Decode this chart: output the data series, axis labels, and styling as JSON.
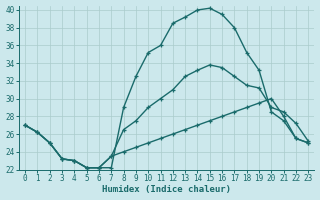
{
  "xlabel": "Humidex (Indice chaleur)",
  "bg_color": "#cce8ec",
  "grid_color": "#aacccc",
  "line_color": "#1a6b6b",
  "xlim": [
    -0.5,
    23.5
  ],
  "ylim": [
    22,
    40.5
  ],
  "xticks": [
    0,
    1,
    2,
    3,
    4,
    5,
    6,
    7,
    8,
    9,
    10,
    11,
    12,
    13,
    14,
    15,
    16,
    17,
    18,
    19,
    20,
    21,
    22,
    23
  ],
  "yticks": [
    22,
    24,
    26,
    28,
    30,
    32,
    34,
    36,
    38,
    40
  ],
  "series1_x": [
    0,
    1,
    2,
    3,
    4,
    5,
    6,
    7,
    8,
    9,
    10,
    11,
    12,
    13,
    14,
    15,
    16,
    17,
    18,
    19,
    20,
    21,
    22,
    23
  ],
  "series1_y": [
    27.0,
    26.2,
    25.0,
    23.2,
    23.0,
    22.2,
    22.2,
    22.2,
    29.0,
    32.5,
    35.2,
    36.0,
    38.5,
    39.2,
    40.0,
    40.2,
    39.5,
    38.0,
    35.2,
    33.2,
    28.5,
    27.5,
    25.5,
    25.0
  ],
  "series2_x": [
    0,
    1,
    2,
    3,
    4,
    5,
    6,
    7,
    8,
    9,
    10,
    11,
    12,
    13,
    14,
    15,
    16,
    17,
    18,
    19,
    20,
    21,
    22,
    23
  ],
  "series2_y": [
    27.0,
    26.2,
    25.0,
    23.2,
    23.0,
    22.2,
    22.2,
    23.5,
    26.5,
    27.5,
    29.0,
    30.0,
    31.0,
    32.5,
    33.2,
    33.8,
    33.5,
    32.5,
    31.5,
    31.2,
    29.0,
    28.5,
    27.2,
    25.2
  ],
  "series3_x": [
    0,
    1,
    2,
    3,
    4,
    5,
    6,
    7,
    8,
    9,
    10,
    11,
    12,
    13,
    14,
    15,
    16,
    17,
    18,
    19,
    20,
    21,
    22,
    23
  ],
  "series3_y": [
    27.0,
    26.2,
    25.0,
    23.2,
    23.0,
    22.2,
    22.2,
    23.5,
    24.0,
    24.5,
    25.0,
    25.5,
    26.0,
    26.5,
    27.0,
    27.5,
    28.0,
    28.5,
    29.0,
    29.5,
    30.0,
    28.0,
    25.5,
    25.0
  ]
}
